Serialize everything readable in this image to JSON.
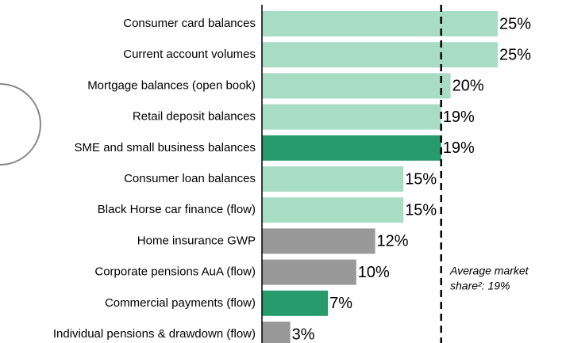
{
  "chart_data": {
    "type": "barh",
    "categories": [
      "Consumer card balances",
      "Current account volumes",
      "Mortgage balances (open book)",
      "Retail deposit balances",
      "SME and small business balances",
      "Consumer loan balances",
      "Black Horse car finance (flow)",
      "Home insurance GWP",
      "Corporate pensions AuA (flow)",
      "Commercial payments (flow)",
      "Individual pensions & drawdown (flow)"
    ],
    "values": [
      25,
      25,
      20,
      19,
      19,
      15,
      15,
      12,
      10,
      7,
      3
    ],
    "value_labels": [
      "25%",
      "25%",
      "20%",
      "19%",
      "19%",
      "15%",
      "15%",
      "12%",
      "10%",
      "7%",
      "3%"
    ],
    "colors": [
      "#a8dcc4",
      "#a8dcc4",
      "#a8dcc4",
      "#a8dcc4",
      "#279b6b",
      "#a8dcc4",
      "#a8dcc4",
      "#999999",
      "#999999",
      "#279b6b",
      "#999999"
    ],
    "xlim": [
      0,
      25
    ],
    "average_line": 19,
    "annotation": [
      "Average market",
      "share²: 19%"
    ]
  }
}
